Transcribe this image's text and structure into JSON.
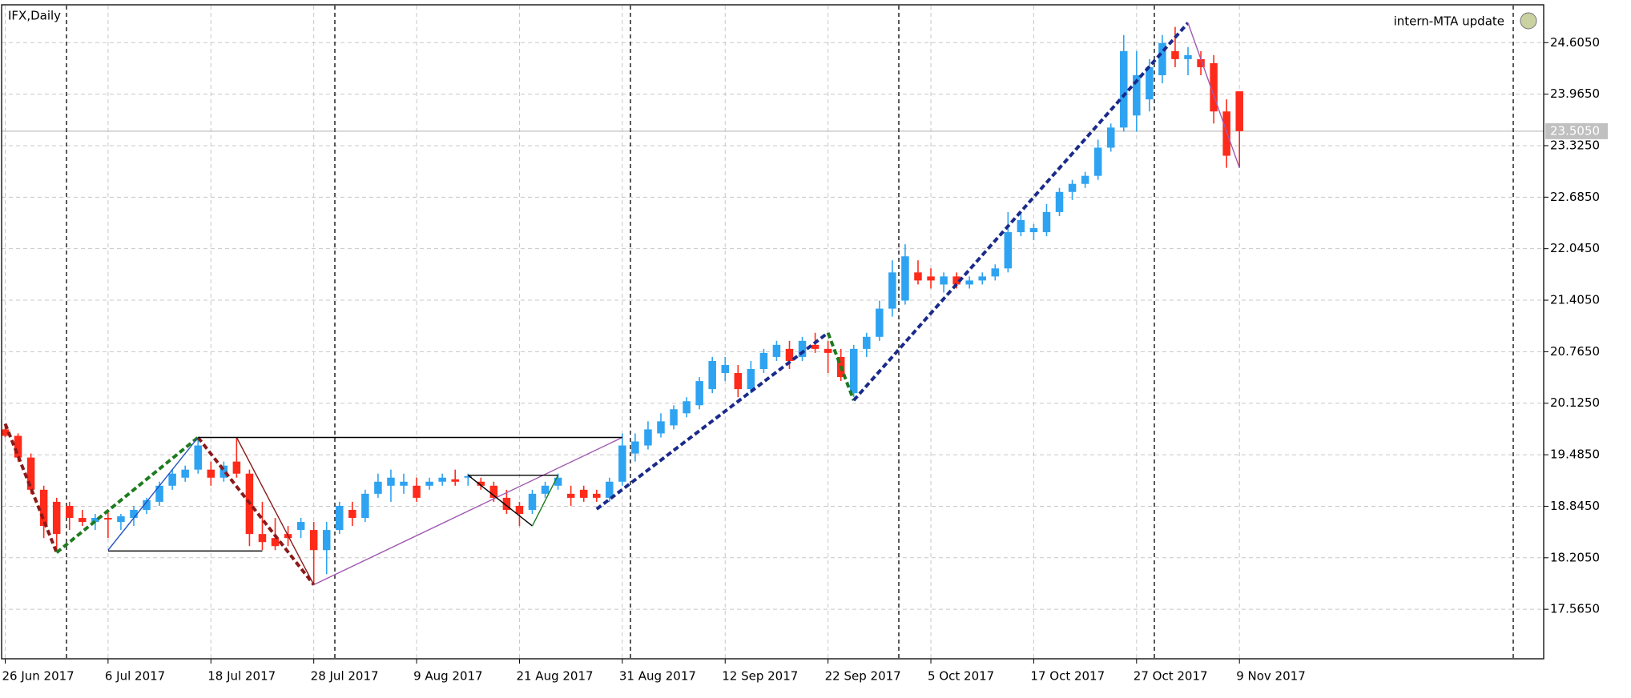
{
  "chart_data": {
    "type": "candlestick",
    "title": "IFX,Daily",
    "annotation": "intern-MTA update",
    "categories": [
      "26 Jun 2017",
      null,
      null,
      null,
      null,
      null,
      null,
      null,
      "6 Jul 2017",
      null,
      null,
      null,
      null,
      null,
      null,
      null,
      "18 Jul 2017",
      null,
      null,
      null,
      null,
      null,
      null,
      null,
      "28 Jul 2017",
      null,
      null,
      null,
      null,
      null,
      null,
      null,
      "9 Aug 2017",
      null,
      null,
      null,
      null,
      null,
      null,
      null,
      "21 Aug 2017",
      null,
      null,
      null,
      null,
      null,
      null,
      null,
      "31 Aug 2017",
      null,
      null,
      null,
      null,
      null,
      null,
      null,
      "12 Sep 2017",
      null,
      null,
      null,
      null,
      null,
      null,
      null,
      "22 Sep 2017",
      null,
      null,
      null,
      null,
      null,
      null,
      null,
      "5 Oct 2017",
      null,
      null,
      null,
      null,
      null,
      null,
      null,
      "17 Oct 2017",
      null,
      null,
      null,
      null,
      null,
      null,
      null,
      "27 Oct 2017",
      null,
      null,
      null,
      null,
      null,
      null,
      null,
      "9 Nov 2017"
    ],
    "open": [
      19.8,
      19.72,
      19.45,
      19.05,
      18.9,
      18.85,
      18.7,
      18.65,
      18.7,
      18.65,
      18.7,
      18.8,
      18.9,
      19.1,
      19.2,
      19.3,
      19.3,
      19.2,
      19.4,
      19.25,
      18.5,
      18.45,
      18.5,
      18.55,
      18.55,
      18.3,
      18.55,
      18.8,
      18.7,
      19.0,
      19.1,
      19.1,
      19.1,
      19.1,
      19.15,
      19.18,
      19.2,
      19.15,
      19.1,
      18.95,
      18.85,
      18.8,
      19.0,
      19.1,
      19.0,
      19.05,
      19.0,
      18.95,
      19.15,
      19.5,
      19.6,
      19.75,
      19.85,
      20.0,
      20.1,
      20.3,
      20.5,
      20.5,
      20.3,
      20.55,
      20.7,
      20.8,
      20.7,
      20.85,
      20.8,
      20.7,
      20.25,
      20.8,
      20.95,
      21.3,
      21.4,
      21.75,
      21.7,
      21.6,
      21.7,
      21.6,
      21.65,
      21.7,
      21.8,
      22.25,
      22.25,
      22.25,
      22.5,
      22.75,
      22.85,
      22.95,
      23.3,
      23.55,
      23.7,
      23.9,
      24.2,
      24.5,
      24.4,
      24.4,
      24.35,
      23.75,
      24.0
    ],
    "high": [
      19.85,
      19.75,
      19.5,
      19.1,
      18.95,
      18.9,
      18.8,
      18.75,
      18.8,
      18.75,
      18.85,
      18.95,
      19.15,
      19.3,
      19.35,
      19.7,
      19.4,
      19.4,
      19.7,
      19.3,
      18.9,
      18.7,
      18.6,
      18.7,
      18.65,
      18.65,
      18.9,
      18.9,
      19.05,
      19.25,
      19.3,
      19.25,
      19.2,
      19.2,
      19.25,
      19.3,
      19.25,
      19.2,
      19.15,
      19.05,
      18.9,
      19.05,
      19.15,
      19.25,
      19.1,
      19.1,
      19.05,
      19.2,
      19.75,
      19.75,
      19.9,
      20.0,
      20.1,
      20.2,
      20.45,
      20.7,
      20.7,
      20.6,
      20.65,
      20.8,
      20.9,
      20.9,
      20.95,
      21.0,
      20.9,
      20.8,
      20.85,
      21.0,
      21.4,
      21.9,
      22.1,
      21.9,
      21.8,
      21.75,
      21.75,
      21.7,
      21.75,
      21.85,
      22.5,
      22.5,
      22.35,
      22.6,
      22.8,
      22.9,
      23.0,
      23.4,
      23.6,
      24.7,
      24.5,
      24.4,
      24.7,
      24.8,
      24.55,
      24.5,
      24.45,
      23.9,
      24.0
    ],
    "low": [
      19.7,
      19.4,
      19.0,
      18.45,
      18.3,
      18.55,
      18.6,
      18.55,
      18.45,
      18.55,
      18.6,
      18.75,
      18.85,
      19.05,
      19.15,
      19.25,
      19.1,
      19.15,
      19.2,
      18.35,
      18.3,
      18.3,
      18.35,
      18.45,
      17.9,
      18.0,
      18.5,
      18.6,
      18.65,
      18.95,
      18.9,
      19.0,
      18.9,
      19.05,
      19.1,
      19.1,
      19.1,
      19.05,
      18.9,
      18.75,
      18.6,
      18.75,
      18.95,
      19.05,
      18.85,
      18.9,
      18.9,
      18.9,
      19.1,
      19.4,
      19.55,
      19.7,
      19.8,
      19.95,
      20.05,
      20.25,
      20.4,
      20.2,
      20.25,
      20.5,
      20.65,
      20.55,
      20.65,
      20.75,
      20.5,
      20.4,
      20.2,
      20.7,
      20.9,
      21.2,
      21.35,
      21.6,
      21.55,
      21.5,
      21.55,
      21.55,
      21.6,
      21.65,
      21.75,
      22.2,
      22.15,
      22.2,
      22.45,
      22.65,
      22.8,
      22.9,
      23.25,
      23.5,
      23.5,
      23.75,
      24.1,
      24.3,
      24.2,
      24.2,
      23.6,
      23.05,
      23.05
    ],
    "close": [
      19.72,
      19.45,
      19.05,
      18.6,
      18.5,
      18.7,
      18.65,
      18.7,
      18.68,
      18.72,
      18.8,
      18.92,
      19.1,
      19.25,
      19.3,
      19.6,
      19.2,
      19.35,
      19.25,
      18.5,
      18.4,
      18.35,
      18.45,
      18.65,
      18.3,
      18.55,
      18.85,
      18.7,
      19.0,
      19.15,
      19.2,
      19.15,
      18.95,
      19.15,
      19.2,
      19.15,
      19.22,
      19.1,
      18.95,
      18.8,
      18.75,
      19.0,
      19.1,
      19.2,
      18.95,
      18.95,
      18.95,
      19.15,
      19.6,
      19.65,
      19.8,
      19.9,
      20.05,
      20.15,
      20.4,
      20.65,
      20.6,
      20.3,
      20.55,
      20.75,
      20.85,
      20.65,
      20.9,
      20.8,
      20.75,
      20.45,
      20.8,
      20.95,
      21.3,
      21.75,
      21.95,
      21.65,
      21.65,
      21.7,
      21.6,
      21.65,
      21.7,
      21.8,
      22.25,
      22.4,
      22.3,
      22.5,
      22.75,
      22.85,
      22.95,
      23.3,
      23.55,
      24.5,
      24.2,
      24.3,
      24.6,
      24.4,
      24.45,
      24.3,
      23.75,
      23.2,
      23.505
    ],
    "up_color": "#2ea3f2",
    "down_color": "#ff2a1a",
    "ylim": [
      16.95,
      25.07
    ],
    "yticks": [
      {
        "value": 17.565,
        "label": "17.5650"
      },
      {
        "value": 18.205,
        "label": "18.2050"
      },
      {
        "value": 18.845,
        "label": "18.8450"
      },
      {
        "value": 19.485,
        "label": "19.4850"
      },
      {
        "value": 20.125,
        "label": "20.1250"
      },
      {
        "value": 20.765,
        "label": "20.7650"
      },
      {
        "value": 21.405,
        "label": "21.4050"
      },
      {
        "value": 22.045,
        "label": "22.0450"
      },
      {
        "value": 22.685,
        "label": "22.6850"
      },
      {
        "value": 23.325,
        "label": "23.3250"
      },
      {
        "value": 23.965,
        "label": "23.9650"
      },
      {
        "value": 24.605,
        "label": "24.6050"
      }
    ],
    "current_price": {
      "value": 23.505,
      "label": "23.5050"
    },
    "grid": true,
    "overlays": [
      {
        "color": "#8b1a1a",
        "dash": true,
        "x": [
          0,
          4
        ],
        "y": [
          19.87,
          18.27
        ]
      },
      {
        "color": "#8b1a1a",
        "dash": true,
        "x": [
          15,
          24
        ],
        "y": [
          19.7,
          17.87
        ]
      },
      {
        "color": "#1e7b1e",
        "dash": true,
        "x": [
          4,
          15
        ],
        "y": [
          18.27,
          19.7
        ]
      },
      {
        "color": "#1e7b1e",
        "dash": true,
        "x": [
          64,
          66
        ],
        "y": [
          21.0,
          20.16
        ]
      },
      {
        "color": "#1a2a8b",
        "dash": true,
        "x": [
          46,
          64
        ],
        "y": [
          18.81,
          21.0
        ]
      },
      {
        "color": "#1a2a8b",
        "dash": true,
        "x": [
          66,
          92
        ],
        "y": [
          20.16,
          24.85
        ]
      },
      {
        "color": "#a05ab0",
        "dash": false,
        "x": [
          24,
          48
        ],
        "y": [
          17.87,
          19.7
        ]
      },
      {
        "color": "#a05ab0",
        "dash": false,
        "x": [
          92,
          96
        ],
        "y": [
          24.85,
          23.05
        ]
      },
      {
        "color": "#2050c0",
        "dash": false,
        "x": [
          8,
          15
        ],
        "y": [
          18.3,
          19.7
        ]
      },
      {
        "color": "#8b1a1a",
        "dash": false,
        "x": [
          18,
          24
        ],
        "y": [
          19.7,
          17.87
        ]
      },
      {
        "color": "#000000",
        "dash": false,
        "x": [
          8,
          20
        ],
        "y": [
          18.29,
          18.29
        ]
      },
      {
        "color": "#000000",
        "dash": false,
        "x": [
          15,
          48
        ],
        "y": [
          19.7,
          19.7
        ]
      },
      {
        "color": "#000000",
        "dash": false,
        "x": [
          36,
          43
        ],
        "y": [
          19.23,
          19.23
        ]
      },
      {
        "color": "#000000",
        "dash": false,
        "x": [
          36,
          41
        ],
        "y": [
          19.23,
          18.6
        ]
      },
      {
        "color": "#1e7b1e",
        "dash": false,
        "x": [
          41,
          43
        ],
        "y": [
          18.6,
          19.23
        ]
      }
    ]
  }
}
